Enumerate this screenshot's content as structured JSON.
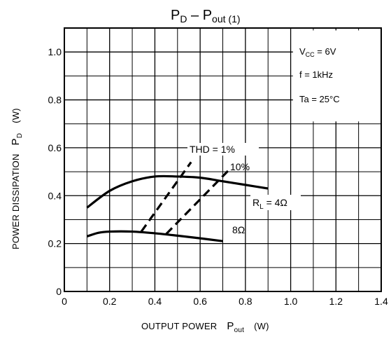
{
  "chart_data": {
    "type": "line",
    "title": "P",
    "title_sub": "D",
    "title_rest": " –  P",
    "title_rest_sub": "out",
    "title_suffix": " (1)",
    "xlabel": "OUTPUT POWER",
    "xlabel_symbol": "P",
    "xlabel_symbol_sub": "out",
    "xlabel_unit": "(W)",
    "ylabel": "POWER DISSIPATION",
    "ylabel_symbol": "P",
    "ylabel_symbol_sub": "D",
    "ylabel_unit": "(W)",
    "xlim": [
      0,
      1.4
    ],
    "ylim": [
      0,
      1.1
    ],
    "xticks": [
      "0",
      "0.2",
      "0.4",
      "0.6",
      "0.8",
      "1.0",
      "1.2",
      "1.4"
    ],
    "yticks": [
      "0",
      "0.2",
      "0.4",
      "0.6",
      "0.8",
      "1.0"
    ],
    "grid": true,
    "conditions": [
      {
        "text": "V",
        "sub": "CC",
        "rest": " = 6V"
      },
      {
        "text": "f = 1kHz"
      },
      {
        "text": "Ta = 25°C"
      }
    ],
    "series": [
      {
        "name": "R",
        "name_sub": "L",
        "name_rest": " = 4Ω",
        "style": "solid",
        "x": [
          0.1,
          0.2,
          0.3,
          0.4,
          0.5,
          0.6,
          0.7,
          0.8,
          0.9
        ],
        "y": [
          0.35,
          0.42,
          0.46,
          0.48,
          0.48,
          0.475,
          0.46,
          0.445,
          0.43
        ]
      },
      {
        "name": "8Ω",
        "style": "solid",
        "x": [
          0.1,
          0.15,
          0.2,
          0.3,
          0.4,
          0.5,
          0.6,
          0.7
        ],
        "y": [
          0.23,
          0.245,
          0.25,
          0.25,
          0.243,
          0.233,
          0.222,
          0.21
        ]
      },
      {
        "name": "THD = 1%",
        "style": "dashed",
        "x": [
          0.34,
          0.56
        ],
        "y": [
          0.25,
          0.54
        ]
      },
      {
        "name": "10%",
        "style": "dashed",
        "x": [
          0.45,
          0.73
        ],
        "y": [
          0.24,
          0.51
        ]
      }
    ]
  }
}
